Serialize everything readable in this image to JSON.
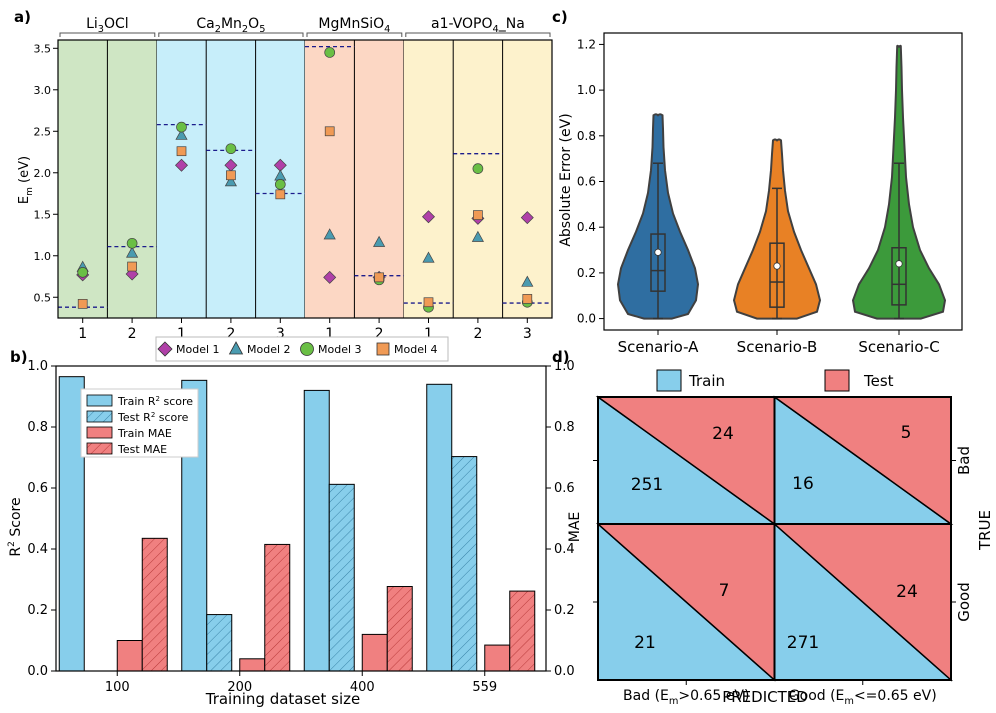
{
  "chart_data": [
    {
      "panel_label": "a)",
      "type": "scatter",
      "ylabel": "E",
      "ylabel_sub": "m",
      "ylabel_unit": " (eV)",
      "ylim": [
        0.25,
        3.6
      ],
      "yticks": [
        0.5,
        1.0,
        1.5,
        2.0,
        2.5,
        3.0,
        3.5
      ],
      "ytick_labels": [
        "0.5",
        "1.0",
        "1.5",
        "2.0",
        "2.5",
        "3.0",
        "3.5"
      ],
      "materials": [
        {
          "name": "Li3OCl",
          "label_main": "Li",
          "label_parts": [
            [
              "Li",
              ""
            ],
            [
              "3",
              "sub"
            ],
            [
              "OCl",
              ""
            ]
          ],
          "paths": [
            {
              "tick": "1",
              "reference": 0.38,
              "model1": 0.77,
              "model2": 0.86,
              "model3": 0.8,
              "model4": 0.42
            },
            {
              "tick": "2",
              "reference": 1.11,
              "model1": 0.78,
              "model2": 1.03,
              "model3": 1.15,
              "model4": 0.87
            }
          ]
        },
        {
          "name": "Ca2Mn2O5",
          "label_main": "Ca",
          "label_parts": [
            [
              "Ca",
              ""
            ],
            [
              "2",
              "sub"
            ],
            [
              "Mn",
              ""
            ],
            [
              "2",
              "sub"
            ],
            [
              "O",
              ""
            ],
            [
              "5",
              "sub"
            ]
          ],
          "paths": [
            {
              "tick": "1",
              "reference": 2.58,
              "model1": 2.09,
              "model2": 2.45,
              "model3": 2.55,
              "model4": 2.26
            },
            {
              "tick": "2",
              "reference": 2.27,
              "model1": 2.09,
              "model2": 1.89,
              "model3": 2.29,
              "model4": 1.97
            },
            {
              "tick": "3",
              "reference": 1.75,
              "model1": 2.09,
              "model2": 1.96,
              "model3": 1.86,
              "model4": 1.74
            }
          ]
        },
        {
          "name": "MgMnSiO4",
          "label_main": "MgMnSiO",
          "label_parts": [
            [
              "MgMnSiO",
              ""
            ],
            [
              "4",
              "sub"
            ]
          ],
          "paths": [
            {
              "tick": "1",
              "reference": 3.52,
              "model1": 0.74,
              "model2": 1.25,
              "model3": 3.45,
              "model4": 2.5
            },
            {
              "tick": "2",
              "reference": 0.76,
              "model1": 0.74,
              "model2": 1.16,
              "model3": 0.71,
              "model4": 0.74
            }
          ]
        },
        {
          "name": "a1-VOPO4_Na",
          "label_main": "a1-VOPO",
          "label_parts": [
            [
              "a1-VOPO",
              ""
            ],
            [
              "4",
              "sub"
            ],
            [
              "_Na",
              ""
            ]
          ],
          "paths": [
            {
              "tick": "1",
              "reference": 0.43,
              "model1": 1.47,
              "model2": 0.97,
              "model3": 0.38,
              "model4": 0.44
            },
            {
              "tick": "2",
              "reference": 2.23,
              "model1": 1.45,
              "model2": 1.22,
              "model3": 2.05,
              "model4": 1.49
            },
            {
              "tick": "3",
              "reference": 0.43,
              "model1": 1.46,
              "model2": 0.68,
              "model3": 0.44,
              "model4": 0.48
            }
          ]
        }
      ],
      "legend": [
        "Model 1",
        "Model 2",
        "Model 3",
        "Model 4"
      ],
      "colors": {
        "model1": "#b040a8",
        "model2": "#4a9bb0",
        "model3": "#6abf45",
        "model4": "#f09a55",
        "reference": "#1c1c8c",
        "bg_green": "#cfe6c4",
        "bg_cyan": "#c7eefa",
        "bg_salmon": "#fcd7c4",
        "bg_yellow": "#fdf2cc"
      }
    },
    {
      "panel_label": "b)",
      "type": "bar",
      "categories": [
        "100",
        "200",
        "400",
        "559"
      ],
      "series": [
        {
          "name": "Train R² score",
          "axis": "left",
          "values": [
            0.965,
            0.953,
            0.92,
            0.94
          ]
        },
        {
          "name": "Test R² score",
          "axis": "left",
          "values": [
            0.0,
            0.185,
            0.612,
            0.703
          ]
        },
        {
          "name": "Train MAE",
          "axis": "right",
          "values": [
            0.1,
            0.04,
            0.12,
            0.085
          ]
        },
        {
          "name": "Test MAE",
          "axis": "right",
          "values": [
            0.435,
            0.415,
            0.277,
            0.262
          ]
        }
      ],
      "xlabel": "Training dataset size",
      "ylabel": "R",
      "ylabel_sup": "2",
      "ylabel_rest": " Score",
      "ylabel_right": "MAE",
      "ylim": [
        0,
        1.0
      ],
      "ylim_right": [
        0,
        1.0
      ],
      "yticks": [
        "0.0",
        "0.2",
        "0.4",
        "0.6",
        "0.8",
        "1.0"
      ],
      "legend_labels": [
        [
          "Train R",
          "2",
          " score"
        ],
        [
          "Test R",
          "2",
          " score"
        ],
        [
          "Train MAE",
          "",
          ""
        ],
        [
          "Test MAE",
          "",
          ""
        ]
      ],
      "colors": {
        "blue": "#87ceeb",
        "red": "#f08080",
        "hatch_blue": "#4aa3c4",
        "hatch_red": "#c84848"
      }
    },
    {
      "panel_label": "c)",
      "type": "violin",
      "categories": [
        "Scenario-A",
        "Scenario-B",
        "Scenario-C"
      ],
      "ylabel": "Absolute Error (eV)",
      "ylim": [
        -0.05,
        1.25
      ],
      "yticks": [
        "0.0",
        "0.2",
        "0.4",
        "0.6",
        "0.8",
        "1.0",
        "1.2"
      ],
      "stats": [
        {
          "q1": 0.12,
          "median": 0.21,
          "q3": 0.37,
          "whisker_low": 0.0,
          "whisker_high": 0.68,
          "mean": 0.29,
          "max": 0.89
        },
        {
          "q1": 0.05,
          "median": 0.16,
          "q3": 0.33,
          "whisker_low": 0.0,
          "whisker_high": 0.57,
          "mean": 0.23,
          "max": 0.78
        },
        {
          "q1": 0.06,
          "median": 0.15,
          "q3": 0.31,
          "whisker_low": 0.0,
          "whisker_high": 0.68,
          "mean": 0.24,
          "max": 1.19
        }
      ],
      "colors": [
        "#2f6ea1",
        "#e88125",
        "#3c9a3b"
      ]
    },
    {
      "panel_label": "d)",
      "type": "confusion-matrix",
      "xlabel": "PREDICTED",
      "ylabel": "TRUE",
      "col_labels": [
        [
          "Bad (E",
          "m",
          ">0.65 eV)"
        ],
        [
          "Good (E",
          "m",
          "<=0.65 eV)"
        ]
      ],
      "row_labels": [
        "Bad",
        "Good"
      ],
      "legend": [
        "Train",
        "Test"
      ],
      "cells": [
        [
          {
            "train": 251,
            "test": 24
          },
          {
            "train": 16,
            "test": 5
          }
        ],
        [
          {
            "train": 21,
            "test": 7
          },
          {
            "train": 271,
            "test": 24
          }
        ]
      ],
      "colors": {
        "train": "#87ceeb",
        "test": "#f08080"
      }
    }
  ]
}
